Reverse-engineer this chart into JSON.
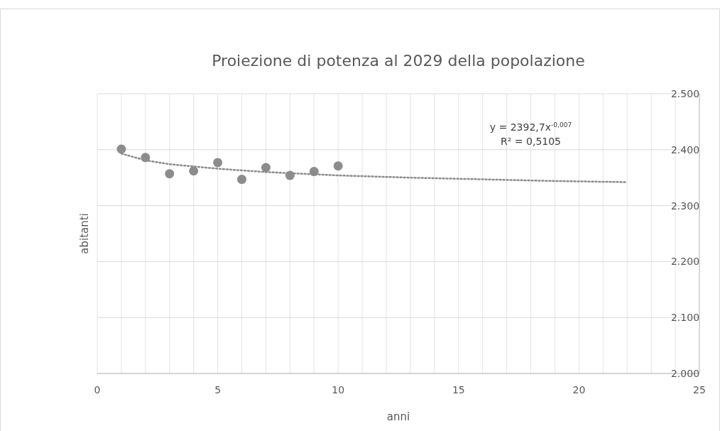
{
  "chart_data": {
    "type": "scatter",
    "title": "Proiezione di potenza al 2029 della popolazione",
    "xlabel": "anni",
    "ylabel": "abitanti",
    "x": [
      1,
      2,
      3,
      4,
      5,
      6,
      7,
      8,
      9,
      10
    ],
    "series": [
      {
        "color": "#8c8c8c",
        "marker": "circle",
        "values": [
          2401,
          2386,
          2357,
          2362,
          2377,
          2347,
          2368,
          2354,
          2361,
          2371
        ]
      },
      {
        "type": "line",
        "color": "#8c8c8c",
        "line_style": "dotted",
        "marker": "none",
        "x": [
          1,
          2,
          3,
          4,
          5,
          7,
          10,
          13,
          16,
          19,
          22
        ],
        "values": [
          2393,
          2381,
          2374,
          2370,
          2366,
          2360,
          2354,
          2350,
          2347,
          2344,
          2342
        ]
      }
    ],
    "xlim": [
      0,
      25
    ],
    "xticks": [
      0,
      {
        "value": 1,
        "label": null
      },
      {
        "value": 2,
        "label": null
      },
      {
        "value": 3,
        "label": null
      },
      {
        "value": 4,
        "label": null
      },
      5,
      {
        "value": 6,
        "label": null
      },
      {
        "value": 7,
        "label": null
      },
      {
        "value": 8,
        "label": null
      },
      {
        "value": 9,
        "label": null
      },
      10,
      {
        "value": 11,
        "label": null
      },
      {
        "value": 12,
        "label": null
      },
      {
        "value": 13,
        "label": null
      },
      {
        "value": 14,
        "label": null
      },
      15,
      {
        "value": 16,
        "label": null
      },
      {
        "value": 17,
        "label": null
      },
      {
        "value": 18,
        "label": null
      },
      {
        "value": 19,
        "label": null
      },
      20,
      {
        "value": 21,
        "label": null
      },
      {
        "value": 22,
        "label": null
      },
      {
        "value": 23,
        "label": null
      },
      {
        "value": 24,
        "label": null
      },
      25
    ],
    "ylim": [
      2000,
      2500
    ],
    "yticks": [
      {
        "value": 2000,
        "label": "2.000"
      },
      {
        "value": 2100,
        "label": "2.100"
      },
      {
        "value": 2200,
        "label": "2.200"
      },
      {
        "value": 2300,
        "label": "2.300"
      },
      {
        "value": 2400,
        "label": "2.400"
      },
      {
        "value": 2500,
        "label": "2.500"
      }
    ],
    "grid": true,
    "annotations": [
      "y = 2392,7x$^{-0,007}$",
      "R² = 0,5105"
    ]
  }
}
